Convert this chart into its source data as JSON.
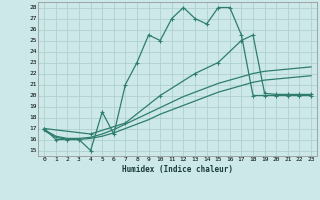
{
  "xlabel": "Humidex (Indice chaleur)",
  "background_color": "#cce8e8",
  "grid_color": "#b0d0d0",
  "line_color": "#2e7d6e",
  "xlim": [
    -0.5,
    23.5
  ],
  "ylim": [
    14.5,
    28.5
  ],
  "yticks": [
    15,
    16,
    17,
    18,
    19,
    20,
    21,
    22,
    23,
    24,
    25,
    26,
    27,
    28
  ],
  "xticks": [
    0,
    1,
    2,
    3,
    4,
    5,
    6,
    7,
    8,
    9,
    10,
    11,
    12,
    13,
    14,
    15,
    16,
    17,
    18,
    19,
    20,
    21,
    22,
    23
  ],
  "series": [
    {
      "x": [
        0,
        1,
        2,
        3,
        4,
        5,
        6,
        7,
        8,
        9,
        10,
        11,
        12,
        13,
        14,
        15,
        16,
        17,
        18,
        19,
        20,
        21,
        22,
        23
      ],
      "y": [
        17,
        16,
        16,
        16,
        15,
        18.5,
        16.5,
        21,
        23,
        25.5,
        25,
        27,
        28,
        27,
        26.5,
        28,
        28,
        25.5,
        20,
        20,
        20,
        20,
        20,
        20
      ],
      "marker": "+"
    },
    {
      "x": [
        0,
        4,
        7,
        10,
        13,
        15,
        17,
        18,
        19,
        20,
        21,
        22,
        23
      ],
      "y": [
        17,
        16.5,
        17.5,
        20,
        22,
        23,
        25,
        25.5,
        20.2,
        20.1,
        20.1,
        20.1,
        20.1
      ],
      "marker": "+"
    },
    {
      "x": [
        0,
        1,
        2,
        3,
        4,
        5,
        6,
        7,
        8,
        9,
        10,
        11,
        12,
        13,
        14,
        15,
        16,
        17,
        18,
        19,
        20,
        21,
        22,
        23
      ],
      "y": [
        16.8,
        16.2,
        16.0,
        16.0,
        16.1,
        16.3,
        16.6,
        17.0,
        17.4,
        17.8,
        18.3,
        18.7,
        19.1,
        19.5,
        19.9,
        20.3,
        20.6,
        20.9,
        21.2,
        21.4,
        21.5,
        21.6,
        21.7,
        21.8
      ],
      "marker": null
    },
    {
      "x": [
        0,
        1,
        2,
        3,
        4,
        5,
        6,
        7,
        8,
        9,
        10,
        11,
        12,
        13,
        14,
        15,
        16,
        17,
        18,
        19,
        20,
        21,
        22,
        23
      ],
      "y": [
        16.9,
        16.3,
        16.1,
        16.1,
        16.2,
        16.5,
        16.9,
        17.4,
        17.9,
        18.4,
        18.9,
        19.4,
        19.9,
        20.3,
        20.7,
        21.1,
        21.4,
        21.7,
        22.0,
        22.2,
        22.3,
        22.4,
        22.5,
        22.6
      ],
      "marker": null
    }
  ]
}
